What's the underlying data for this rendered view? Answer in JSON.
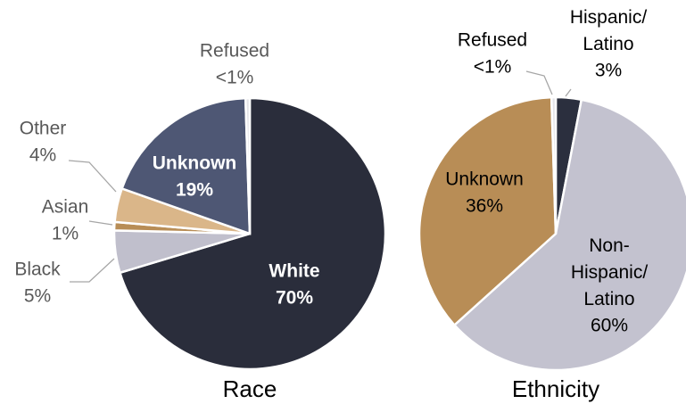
{
  "chart_data": [
    {
      "type": "pie",
      "title": "Race",
      "categories": [
        "White",
        "Black",
        "Asian",
        "Other",
        "Unknown",
        "Refused"
      ],
      "values": [
        70,
        5,
        1,
        4,
        19,
        0.5
      ],
      "value_labels": [
        "70%",
        "5%",
        "1%",
        "4%",
        "19%",
        "<1%"
      ],
      "colors": [
        "#2a2d3b",
        "#c0bfcc",
        "#b88d56",
        "#dab689",
        "#4e5774",
        "#e4e4e8"
      ]
    },
    {
      "type": "pie",
      "title": "Ethnicity",
      "categories": [
        "Hispanic/Latino",
        "Non-Hispanic/Latino",
        "Unknown",
        "Refused"
      ],
      "values": [
        3,
        60,
        36,
        0.5
      ],
      "value_labels": [
        "3%",
        "60%",
        "36%",
        "<1%"
      ],
      "colors": [
        "#2b2f3e",
        "#c3c2cf",
        "#b88d56",
        "#e4e4e8"
      ]
    }
  ]
}
